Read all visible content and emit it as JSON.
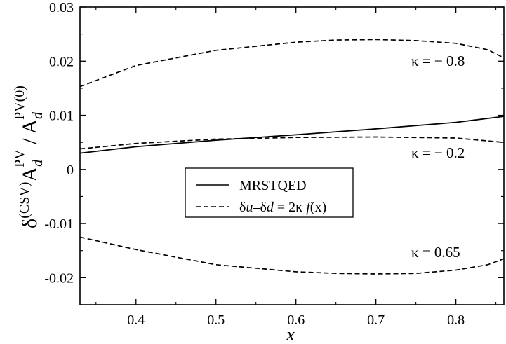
{
  "chart_data": {
    "type": "line",
    "xlabel": "x",
    "ylabel": {
      "delta": "δ",
      "csv": "(CSV)",
      "a": "A",
      "d": "d",
      "pv": "PV",
      "slash": " / ",
      "pv0": "PV(0)"
    },
    "xlim": [
      0.33,
      0.86
    ],
    "ylim": [
      -0.025,
      0.03
    ],
    "xticks": [
      0.4,
      0.5,
      0.6,
      0.7,
      0.8
    ],
    "xtick_labels": [
      "0.4",
      "0.5",
      "0.6",
      "0.7",
      "0.8"
    ],
    "yticks": [
      -0.02,
      -0.01,
      0,
      0.01,
      0.02,
      0.03
    ],
    "ytick_labels": [
      "-0.02",
      "-0.01",
      "0",
      "0.01",
      "0.02",
      "0.03"
    ],
    "grid": false,
    "legend_position": "center",
    "legend": {
      "solid": "MRSTQED",
      "dashed": {
        "du": "δ",
        "u": "u",
        "minus": "–δ",
        "d": "d",
        "eq": " = 2κ ",
        "f": "f",
        "arg": "(x)"
      }
    },
    "series": [
      {
        "style": "solid",
        "x": [
          0.33,
          0.4,
          0.5,
          0.6,
          0.7,
          0.8,
          0.86
        ],
        "y": [
          0.003,
          0.0042,
          0.0054,
          0.0064,
          0.0075,
          0.0087,
          0.0098
        ]
      },
      {
        "style": "dashed",
        "label": "κ = − 0.8",
        "x": [
          0.33,
          0.4,
          0.5,
          0.6,
          0.65,
          0.7,
          0.75,
          0.8,
          0.84,
          0.86
        ],
        "y": [
          0.0153,
          0.0192,
          0.022,
          0.0235,
          0.0239,
          0.024,
          0.0238,
          0.0233,
          0.0221,
          0.0206
        ]
      },
      {
        "style": "dashed",
        "label": "κ = − 0.2",
        "x": [
          0.33,
          0.4,
          0.5,
          0.6,
          0.7,
          0.8,
          0.86
        ],
        "y": [
          0.0038,
          0.0048,
          0.0056,
          0.0059,
          0.006,
          0.0058,
          0.005
        ]
      },
      {
        "style": "dashed",
        "label": "κ = 0.65",
        "x": [
          0.33,
          0.4,
          0.5,
          0.6,
          0.65,
          0.7,
          0.75,
          0.8,
          0.84,
          0.86
        ],
        "y": [
          -0.0125,
          -0.0148,
          -0.0176,
          -0.0189,
          -0.0192,
          -0.0193,
          -0.0192,
          -0.0186,
          -0.0176,
          -0.0165
        ]
      }
    ]
  }
}
